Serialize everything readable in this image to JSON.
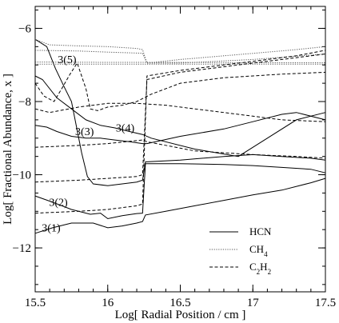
{
  "chart_data": {
    "type": "line",
    "title": "",
    "xlabel": "Log[ Radial Position / cm ]",
    "ylabel": "Log[ Fractional Abundance, x ]",
    "xlim": [
      15.5,
      17.5
    ],
    "ylim": [
      -13.2,
      -5.4
    ],
    "x_ticks": [
      15.5,
      16,
      16.5,
      17,
      17.5
    ],
    "x_tick_labels": [
      "15.5",
      "16",
      "16.5",
      "17",
      "17.5"
    ],
    "y_ticks": [
      -12,
      -10,
      -8,
      -6
    ],
    "y_tick_labels": [
      "−12",
      "−10",
      "−8",
      "−6"
    ],
    "grid": false,
    "legend_position": "bottom-right",
    "legend": [
      {
        "name": "HCN",
        "sub": "",
        "dash": "solid"
      },
      {
        "name": "CH",
        "sub": "4",
        "dash": "dotted"
      },
      {
        "name": "C",
        "sub": "2",
        "name2": "H",
        "sub2": "2",
        "dash": "dashed"
      }
    ],
    "annotations": [
      {
        "text": "3(5)",
        "x": 15.72,
        "y": -6.95
      },
      {
        "text": "3(3)",
        "x": 15.84,
        "y": -8.92
      },
      {
        "text": "3(4)",
        "x": 16.12,
        "y": -8.82
      },
      {
        "text": "3(2)",
        "x": 15.66,
        "y": -10.85
      },
      {
        "text": "3(1)",
        "x": 15.61,
        "y": -11.55
      }
    ],
    "series": [
      {
        "molecule": "HCN",
        "dash": "solid",
        "x": [
          15.5,
          15.62,
          15.75,
          15.9,
          16.0,
          16.1,
          16.2,
          16.24,
          16.26,
          16.4,
          16.6,
          16.8,
          17.0,
          17.2,
          17.4,
          17.5
        ],
        "y": [
          -11.6,
          -11.45,
          -11.32,
          -11.32,
          -11.45,
          -11.4,
          -11.32,
          -11.28,
          -11.1,
          -11.0,
          -10.85,
          -10.7,
          -10.55,
          -10.42,
          -10.22,
          -10.1
        ]
      },
      {
        "molecule": "HCN",
        "dash": "solid",
        "x": [
          15.5,
          15.62,
          15.75,
          15.88,
          15.95,
          16.0,
          16.1,
          16.2,
          16.24,
          16.26,
          16.5,
          16.8,
          17.0,
          17.2,
          17.4,
          17.5
        ],
        "y": [
          -10.58,
          -10.75,
          -10.95,
          -11.08,
          -11.05,
          -11.2,
          -11.12,
          -11.06,
          -11.05,
          -9.7,
          -9.7,
          -9.72,
          -9.75,
          -9.8,
          -9.85,
          -9.95
        ]
      },
      {
        "molecule": "HCN",
        "dash": "solid",
        "x": [
          15.5,
          15.58,
          15.64,
          15.7,
          15.75,
          15.82,
          15.86,
          15.9,
          16.0,
          16.1,
          16.2,
          16.24,
          16.26,
          16.5,
          16.8,
          17.0,
          17.2,
          17.4,
          17.5
        ],
        "y": [
          -6.3,
          -6.5,
          -7.1,
          -7.6,
          -8.0,
          -9.4,
          -10.05,
          -10.25,
          -10.3,
          -10.25,
          -10.2,
          -10.15,
          -9.65,
          -9.6,
          -9.5,
          -9.45,
          -9.5,
          -9.55,
          -9.6
        ]
      },
      {
        "molecule": "HCN",
        "dash": "solid",
        "x": [
          15.5,
          15.58,
          15.65,
          15.75,
          15.85,
          15.95,
          16.05,
          16.15,
          16.24,
          16.27,
          16.5,
          16.8,
          17.0,
          17.2,
          17.3,
          17.5
        ],
        "y": [
          -8.65,
          -8.7,
          -8.82,
          -8.95,
          -9.0,
          -9.0,
          -9.05,
          -9.1,
          -9.15,
          -9.15,
          -8.95,
          -8.75,
          -8.55,
          -8.35,
          -8.3,
          -8.5
        ]
      },
      {
        "molecule": "HCN",
        "dash": "solid",
        "x": [
          15.5,
          15.55,
          15.65,
          15.75,
          15.85,
          15.95,
          16.05,
          16.15,
          16.24,
          16.3,
          16.6,
          16.9,
          17.1,
          17.3,
          17.5
        ],
        "y": [
          -7.3,
          -7.4,
          -7.9,
          -8.2,
          -8.5,
          -8.65,
          -8.72,
          -8.82,
          -8.9,
          -9.0,
          -9.3,
          -9.5,
          -9.0,
          -8.5,
          -8.3
        ]
      },
      {
        "molecule": "CH4",
        "dash": "dotted",
        "x": [
          15.5,
          15.6,
          15.8,
          16.0,
          16.2,
          16.24,
          16.27,
          16.5,
          16.8,
          17.1,
          17.3,
          17.5
        ],
        "y": [
          -6.3,
          -6.45,
          -6.48,
          -6.5,
          -6.55,
          -6.58,
          -6.95,
          -6.85,
          -6.75,
          -6.65,
          -6.58,
          -6.5
        ]
      },
      {
        "molecule": "CH4",
        "dash": "dotted",
        "x": [
          15.5,
          15.8,
          16.0,
          16.24,
          16.27,
          16.5,
          17.0,
          17.5
        ],
        "y": [
          -6.6,
          -6.62,
          -6.65,
          -6.68,
          -6.95,
          -6.95,
          -6.85,
          -6.7
        ]
      },
      {
        "molecule": "CH4",
        "dash": "dotted",
        "x": [
          15.5,
          16.0,
          16.5,
          17.0,
          17.5
        ],
        "y": [
          -6.92,
          -6.93,
          -6.93,
          -6.94,
          -6.94
        ]
      },
      {
        "molecule": "CH4",
        "dash": "dotted",
        "x": [
          15.5,
          16.0,
          16.5,
          17.0,
          17.5
        ],
        "y": [
          -6.98,
          -6.98,
          -6.98,
          -6.98,
          -6.98
        ]
      },
      {
        "molecule": "C2H2",
        "dash": "dashed",
        "x": [
          15.5,
          15.56,
          15.63,
          15.69,
          15.74,
          15.79,
          15.85,
          15.88,
          15.93,
          16.0,
          16.1,
          16.2,
          16.3,
          16.5,
          16.8,
          17.0,
          17.2,
          17.5
        ],
        "y": [
          -7.5,
          -7.85,
          -8.0,
          -7.6,
          -7.25,
          -6.95,
          -7.65,
          -8.2,
          -8.25,
          -8.15,
          -8.1,
          -8.0,
          -7.8,
          -7.5,
          -7.35,
          -7.3,
          -7.25,
          -7.2
        ]
      },
      {
        "molecule": "C2H2",
        "dash": "dashed",
        "x": [
          15.5,
          15.6,
          15.8,
          16.0,
          16.2,
          16.4,
          16.6,
          16.8,
          17.0,
          17.2,
          17.5
        ],
        "y": [
          -8.2,
          -8.3,
          -8.15,
          -8.05,
          -8.05,
          -8.1,
          -8.2,
          -8.3,
          -8.4,
          -8.5,
          -8.55
        ]
      },
      {
        "molecule": "C2H2",
        "dash": "dashed",
        "x": [
          15.5,
          15.8,
          16.0,
          16.24,
          16.27,
          16.6,
          17.0,
          17.3,
          17.5
        ],
        "y": [
          -9.25,
          -9.2,
          -9.15,
          -9.05,
          -9.1,
          -9.35,
          -9.45,
          -9.5,
          -9.55
        ]
      },
      {
        "molecule": "C2H2",
        "dash": "dashed",
        "x": [
          15.5,
          15.8,
          16.0,
          16.2,
          16.24,
          16.27,
          16.5,
          16.8,
          17.0,
          17.2,
          17.5
        ],
        "y": [
          -10.2,
          -10.15,
          -10.1,
          -10.05,
          -10.0,
          -7.4,
          -7.2,
          -7.05,
          -6.95,
          -6.85,
          -6.7
        ]
      },
      {
        "molecule": "C2H2",
        "dash": "dashed",
        "x": [
          15.5,
          15.8,
          16.0,
          16.2,
          16.24,
          16.27,
          16.5,
          16.8,
          17.0,
          17.3,
          17.5
        ],
        "y": [
          -11.05,
          -11.0,
          -10.95,
          -10.85,
          -10.8,
          -7.3,
          -7.15,
          -7.0,
          -6.9,
          -6.75,
          -6.6
        ]
      }
    ]
  }
}
